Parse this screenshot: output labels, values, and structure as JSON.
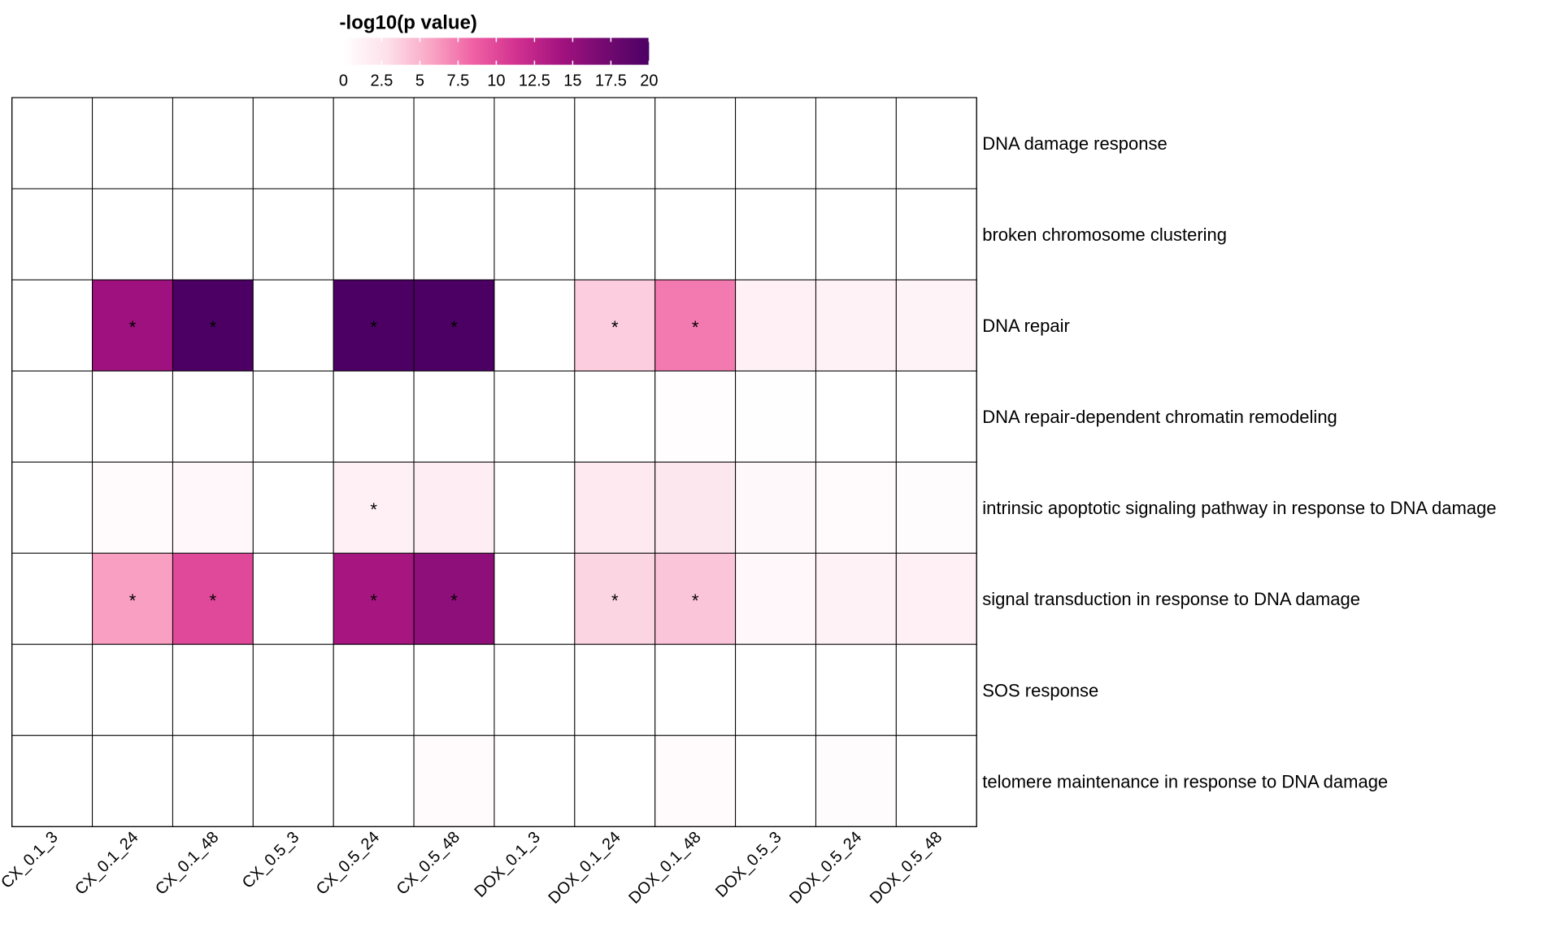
{
  "chart_data": {
    "type": "heatmap",
    "legend": {
      "title": "-log10(p value)",
      "ticks": [
        "0",
        "2.5",
        "5",
        "7.5",
        "10",
        "12.5",
        "15",
        "17.5",
        "20"
      ],
      "range": [
        0,
        20
      ],
      "colors": [
        "#ffffff",
        "#fde0ea",
        "#f9a6c5",
        "#ef5fa3",
        "#d0308f",
        "#a2127f",
        "#730a71",
        "#4c0064"
      ]
    },
    "columns": [
      "CX_0.1_3",
      "CX_0.1_24",
      "CX_0.1_48",
      "CX_0.5_3",
      "CX_0.5_24",
      "CX_0.5_48",
      "DOX_0.1_3",
      "DOX_0.1_24",
      "DOX_0.1_48",
      "DOX_0.5_3",
      "DOX_0.5_24",
      "DOX_0.5_48"
    ],
    "rows": [
      "DNA damage response",
      "broken chromosome clustering",
      "DNA repair",
      "DNA repair-dependent chromatin remodeling",
      "intrinsic apoptotic signaling pathway in response to DNA damage",
      "signal transduction in response to DNA damage",
      "SOS response",
      "telomere maintenance in response to DNA damage"
    ],
    "values": [
      [
        0,
        0,
        0,
        0,
        0,
        0,
        0,
        0,
        0,
        0,
        0,
        0
      ],
      [
        0,
        0,
        0,
        0,
        0,
        0,
        0,
        0,
        0,
        0,
        0,
        0
      ],
      [
        0,
        14.5,
        20,
        0,
        20,
        20,
        0,
        3.8,
        7.5,
        1.4,
        1.2,
        1.0
      ],
      [
        0,
        0,
        0,
        0,
        0,
        0,
        0,
        0,
        0.2,
        0.1,
        0,
        0
      ],
      [
        0,
        0.5,
        0.7,
        0,
        1.4,
        1.6,
        0,
        2.0,
        2.2,
        0.6,
        0.4,
        0.3
      ],
      [
        0,
        6.0,
        10.0,
        0,
        14.0,
        15.5,
        0,
        3.4,
        4.2,
        0.7,
        1.2,
        1.4
      ],
      [
        0,
        0,
        0,
        0,
        0,
        0,
        0,
        0,
        0,
        0,
        0,
        0
      ],
      [
        0,
        0,
        0,
        0,
        0,
        0.5,
        0,
        0,
        0.5,
        0,
        0.3,
        0
      ]
    ],
    "significant": [
      [
        2,
        1
      ],
      [
        2,
        2
      ],
      [
        2,
        4
      ],
      [
        2,
        5
      ],
      [
        2,
        7
      ],
      [
        2,
        8
      ],
      [
        4,
        4
      ],
      [
        5,
        1
      ],
      [
        5,
        2
      ],
      [
        5,
        4
      ],
      [
        5,
        5
      ],
      [
        5,
        7
      ],
      [
        5,
        8
      ]
    ],
    "significance_marker": "*"
  }
}
